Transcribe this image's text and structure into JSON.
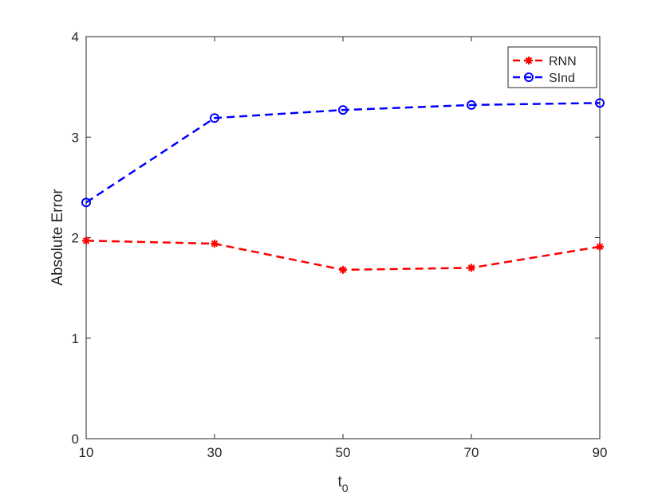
{
  "chart_data": {
    "type": "line",
    "title": "",
    "xlabel": "t",
    "xlabel_subscript": "0",
    "ylabel": "Absolute Error",
    "x": [
      10,
      30,
      50,
      70,
      90
    ],
    "xlim": [
      10,
      90
    ],
    "ylim": [
      0,
      4
    ],
    "xticks": [
      "10",
      "30",
      "50",
      "70",
      "90"
    ],
    "yticks": [
      "0",
      "1",
      "2",
      "3",
      "4"
    ],
    "grid": false,
    "legend_position": "top-right",
    "series": [
      {
        "name": "RNN",
        "values": [
          1.97,
          1.94,
          1.68,
          1.7,
          1.91
        ],
        "color": "#ff0000",
        "line_style": "dashed",
        "marker": "asterisk"
      },
      {
        "name": "SInd",
        "values": [
          2.35,
          3.19,
          3.27,
          3.32,
          3.34
        ],
        "color": "#0000ff",
        "line_style": "dashed",
        "marker": "circle"
      }
    ]
  }
}
